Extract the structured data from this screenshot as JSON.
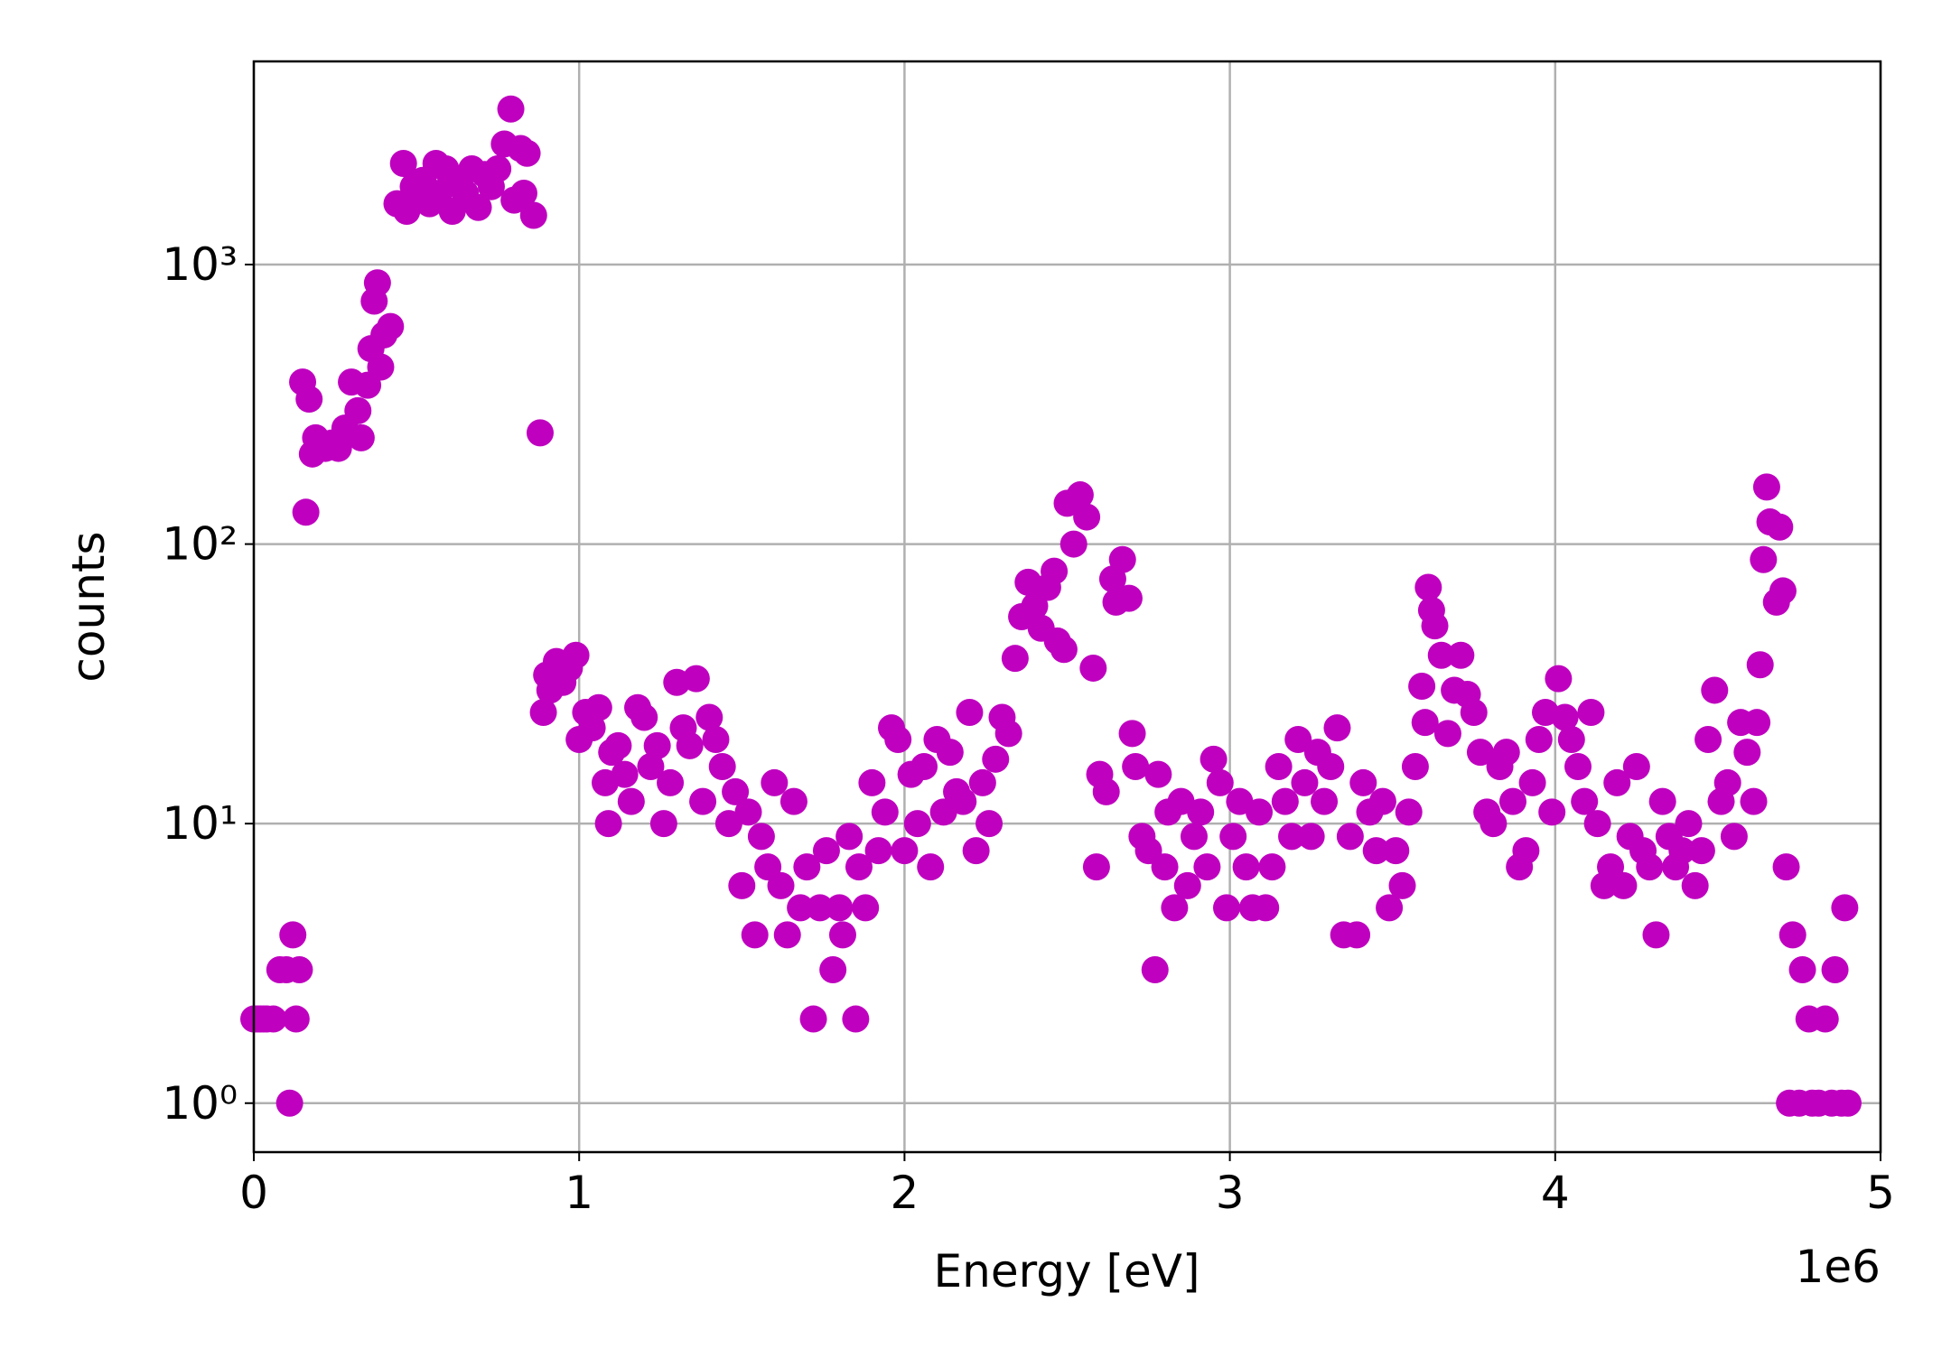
{
  "chart_data": {
    "type": "scatter",
    "xlabel": "Energy [eV]",
    "ylabel": "counts",
    "x_offset_label": "1e6",
    "color": "#bf00bf",
    "log_y": true,
    "grid": true,
    "xlim": [
      0,
      5000000
    ],
    "ylim": [
      0.668,
      5330
    ],
    "xticks": [
      0,
      {
        "value": 1000000,
        "label": "1"
      },
      {
        "value": 2000000,
        "label": "2"
      },
      {
        "value": 3000000,
        "label": "3"
      },
      {
        "value": 4000000,
        "label": "4"
      },
      {
        "value": 5000000,
        "label": "5"
      }
    ],
    "yticks": [
      {
        "value": 1,
        "label": "10⁰"
      },
      {
        "value": 10,
        "label": "10¹"
      },
      {
        "value": 100,
        "label": "10²"
      },
      {
        "value": 1000,
        "label": "10³"
      }
    ],
    "x": [
      0,
      10000,
      20000,
      30000,
      40000,
      60000,
      80000,
      100000,
      110000,
      120000,
      130000,
      140000,
      150000,
      160000,
      170000,
      180000,
      190000,
      200000,
      220000,
      240000,
      260000,
      280000,
      300000,
      320000,
      330000,
      350000,
      360000,
      370000,
      380000,
      390000,
      400000,
      420000,
      440000,
      460000,
      470000,
      490000,
      500000,
      520000,
      540000,
      560000,
      570000,
      590000,
      610000,
      630000,
      650000,
      670000,
      690000,
      710000,
      730000,
      750000,
      770000,
      790000,
      800000,
      820000,
      830000,
      840000,
      860000,
      880000,
      890000,
      900000,
      910000,
      930000,
      950000,
      970000,
      990000,
      1000000,
      1020000,
      1040000,
      1060000,
      1080000,
      1090000,
      1100000,
      1120000,
      1140000,
      1160000,
      1180000,
      1200000,
      1220000,
      1240000,
      1260000,
      1280000,
      1300000,
      1320000,
      1340000,
      1360000,
      1380000,
      1400000,
      1420000,
      1440000,
      1460000,
      1480000,
      1500000,
      1520000,
      1540000,
      1560000,
      1580000,
      1600000,
      1620000,
      1640000,
      1660000,
      1680000,
      1700000,
      1720000,
      1740000,
      1760000,
      1780000,
      1800000,
      1810000,
      1830000,
      1850000,
      1860000,
      1880000,
      1900000,
      1920000,
      1940000,
      1960000,
      1980000,
      2000000,
      2020000,
      2040000,
      2060000,
      2080000,
      2100000,
      2120000,
      2140000,
      2160000,
      2180000,
      2200000,
      2220000,
      2240000,
      2260000,
      2280000,
      2300000,
      2320000,
      2340000,
      2360000,
      2380000,
      2400000,
      2420000,
      2440000,
      2460000,
      2470000,
      2490000,
      2500000,
      2520000,
      2540000,
      2560000,
      2580000,
      2590000,
      2600000,
      2620000,
      2640000,
      2650000,
      2670000,
      2690000,
      2700000,
      2710000,
      2730000,
      2750000,
      2770000,
      2780000,
      2800000,
      2810000,
      2830000,
      2850000,
      2870000,
      2890000,
      2910000,
      2930000,
      2950000,
      2970000,
      2990000,
      3010000,
      3030000,
      3050000,
      3070000,
      3090000,
      3110000,
      3130000,
      3150000,
      3170000,
      3190000,
      3210000,
      3230000,
      3250000,
      3270000,
      3290000,
      3310000,
      3330000,
      3350000,
      3370000,
      3390000,
      3410000,
      3430000,
      3450000,
      3470000,
      3490000,
      3510000,
      3530000,
      3550000,
      3570000,
      3590000,
      3600000,
      3610000,
      3620000,
      3630000,
      3650000,
      3670000,
      3690000,
      3710000,
      3730000,
      3750000,
      3770000,
      3790000,
      3810000,
      3830000,
      3850000,
      3870000,
      3890000,
      3910000,
      3930000,
      3950000,
      3970000,
      3990000,
      4010000,
      4030000,
      4050000,
      4070000,
      4090000,
      4110000,
      4130000,
      4150000,
      4170000,
      4190000,
      4210000,
      4230000,
      4250000,
      4270000,
      4290000,
      4310000,
      4330000,
      4350000,
      4370000,
      4390000,
      4410000,
      4430000,
      4450000,
      4470000,
      4490000,
      4510000,
      4530000,
      4550000,
      4570000,
      4590000,
      4610000,
      4620000,
      4630000,
      4640000,
      4650000,
      4660000,
      4680000,
      4690000,
      4700000,
      4710000,
      4720000,
      4730000,
      4750000,
      4760000,
      4780000,
      4790000,
      4810000,
      4830000,
      4850000,
      4860000,
      4880000,
      4890000,
      4900000
    ],
    "values": [
      2,
      2,
      2,
      2,
      2,
      2,
      3,
      3,
      1,
      4,
      2,
      3,
      380,
      130,
      330,
      210,
      240,
      230,
      220,
      230,
      220,
      260,
      380,
      300,
      240,
      370,
      500,
      740,
      860,
      430,
      560,
      600,
      1650,
      2300,
      1550,
      1900,
      1750,
      2000,
      1650,
      2300,
      1800,
      2200,
      1550,
      2000,
      1800,
      2200,
      1600,
      2100,
      1900,
      2200,
      2700,
      3600,
      1700,
      2600,
      1800,
      2500,
      1500,
      250,
      25,
      34,
      30,
      38,
      32,
      36,
      40,
      20,
      25,
      22,
      26,
      14,
      10,
      18,
      19,
      15,
      12,
      26,
      24,
      16,
      19,
      10,
      14,
      32,
      22,
      19,
      33,
      12,
      24,
      20,
      16,
      10,
      13,
      6,
      11,
      4,
      9,
      7,
      14,
      6,
      4,
      12,
      5,
      7,
      2,
      5,
      8,
      3,
      5,
      4,
      9,
      2,
      7,
      5,
      14,
      8,
      11,
      22,
      20,
      8,
      15,
      10,
      16,
      7,
      20,
      11,
      18,
      13,
      12,
      25,
      8,
      14,
      10,
      17,
      24,
      21,
      39,
      55,
      73,
      60,
      50,
      70,
      80,
      45,
      42,
      140,
      100,
      150,
      125,
      36,
      7,
      15,
      13,
      75,
      62,
      88,
      64,
      21,
      16,
      9,
      8,
      3,
      15,
      7,
      11,
      5,
      12,
      6,
      9,
      11,
      7,
      17,
      14,
      5,
      9,
      12,
      7,
      5,
      11,
      5,
      7,
      16,
      12,
      9,
      20,
      14,
      9,
      18,
      12,
      16,
      22,
      4,
      9,
      4,
      14,
      11,
      8,
      12,
      5,
      8,
      6,
      11,
      16,
      31,
      23,
      70,
      58,
      51,
      40,
      21,
      30,
      40,
      29,
      25,
      18,
      11,
      10,
      16,
      18,
      12,
      7,
      8,
      14,
      20,
      25,
      11,
      33,
      24,
      20,
      16,
      12,
      25,
      10,
      6,
      7,
      14,
      6,
      9,
      16,
      8,
      7,
      4,
      12,
      9,
      7,
      8,
      10,
      6,
      8,
      20,
      30,
      12,
      14,
      9,
      23,
      18,
      12,
      23,
      37,
      88,
      160,
      120,
      62,
      115,
      68,
      7,
      1,
      4,
      1,
      3,
      2,
      1,
      1,
      2,
      1,
      3,
      1,
      5,
      1
    ]
  }
}
